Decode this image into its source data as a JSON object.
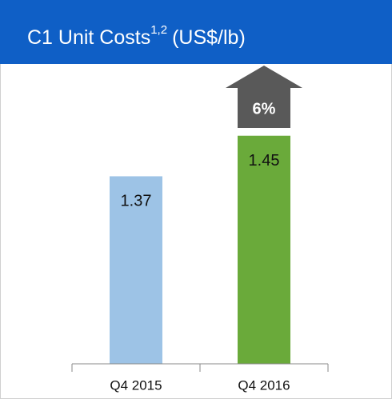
{
  "chart_data": {
    "type": "bar",
    "title": "C1 Unit Costs",
    "title_superscript": "1,2",
    "title_unit": "(US$/lb)",
    "categories": [
      "Q4 2015",
      "Q4 2016"
    ],
    "values": [
      1.37,
      1.45
    ],
    "colors": [
      "#9dc3e6",
      "#6aaa3a"
    ],
    "ylim": [
      1.0,
      1.56
    ],
    "annotation": "6%"
  }
}
